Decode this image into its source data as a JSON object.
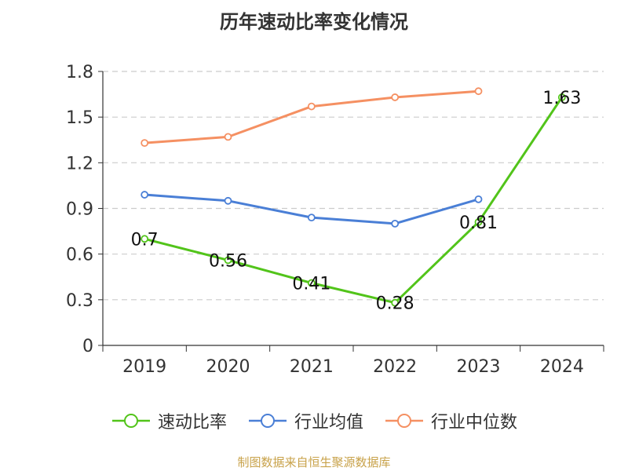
{
  "chart_data": {
    "type": "line",
    "title": "历年速动比率变化情况",
    "categories": [
      "2019",
      "2020",
      "2021",
      "2022",
      "2023",
      "2024"
    ],
    "ylim": [
      0,
      1.8
    ],
    "yticks": [
      "0",
      "0.3",
      "0.6",
      "0.9",
      "1.2",
      "1.5",
      "1.8"
    ],
    "grid": true,
    "legend_position": "bottom",
    "series": [
      {
        "name": "速动比率",
        "color": "#52c41a",
        "values": [
          0.7,
          0.56,
          0.41,
          0.28,
          0.81,
          1.63
        ],
        "labels": [
          "0.7",
          "0.56",
          "0.41",
          "0.28",
          "0.81",
          "1.63"
        ]
      },
      {
        "name": "行业均值",
        "color": "#4a7fd6",
        "values": [
          0.99,
          0.95,
          0.84,
          0.8,
          0.96,
          null
        ]
      },
      {
        "name": "行业中位数",
        "color": "#f59062",
        "values": [
          1.33,
          1.37,
          1.57,
          1.63,
          1.67,
          null
        ]
      }
    ],
    "source": "制图数据来自恒生聚源数据库"
  }
}
